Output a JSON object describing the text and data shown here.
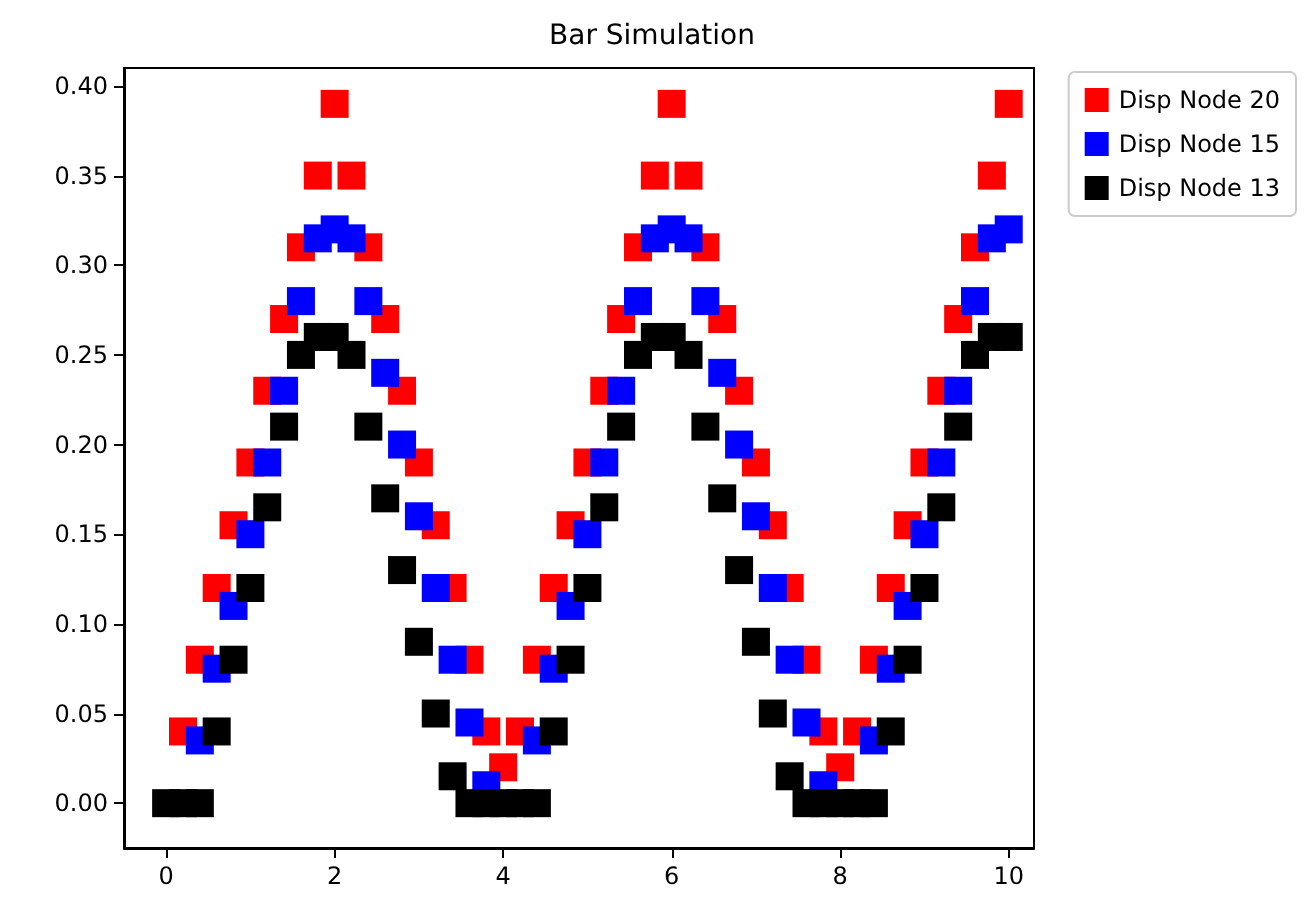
{
  "chart_data": {
    "type": "scatter",
    "title": "Bar Simulation",
    "x": [
      0,
      0.2,
      0.4,
      0.6,
      0.8,
      1,
      1.2,
      1.4,
      1.6,
      1.8,
      2,
      2.2,
      2.4,
      2.6,
      2.8,
      3,
      3.2,
      3.4,
      3.6,
      3.8,
      4,
      4.2,
      4.4,
      4.6,
      4.8,
      5,
      5.2,
      5.4,
      5.6,
      5.8,
      6,
      6.2,
      6.4,
      6.6,
      6.8,
      7,
      7.2,
      7.4,
      7.6,
      7.8,
      8,
      8.2,
      8.4,
      8.6,
      8.8,
      9,
      9.2,
      9.4,
      9.6,
      9.8,
      10
    ],
    "series": [
      {
        "name": "Disp Node 20",
        "color": "#ff0000",
        "values": [
          null,
          0.04,
          0.08,
          0.12,
          0.155,
          0.19,
          0.23,
          0.27,
          0.31,
          0.35,
          0.39,
          0.35,
          0.31,
          0.27,
          0.23,
          0.19,
          0.155,
          0.12,
          0.08,
          0.04,
          0.02,
          0.04,
          0.08,
          0.12,
          0.155,
          0.19,
          0.23,
          0.27,
          0.31,
          0.35,
          0.39,
          0.35,
          0.31,
          0.27,
          0.23,
          0.19,
          0.155,
          0.12,
          0.08,
          0.04,
          0.02,
          0.04,
          0.08,
          0.12,
          0.155,
          0.19,
          0.23,
          0.27,
          0.31,
          0.35,
          0.39
        ]
      },
      {
        "name": "Disp Node 15",
        "color": "#0000ff",
        "values": [
          null,
          null,
          0.035,
          0.075,
          0.11,
          0.15,
          0.19,
          0.23,
          0.28,
          0.315,
          0.32,
          0.315,
          0.28,
          0.24,
          0.2,
          0.16,
          0.12,
          0.08,
          0.045,
          0.01,
          null,
          null,
          0.035,
          0.075,
          0.11,
          0.15,
          0.19,
          0.23,
          0.28,
          0.315,
          0.32,
          0.315,
          0.28,
          0.24,
          0.2,
          0.16,
          0.12,
          0.08,
          0.045,
          0.01,
          null,
          null,
          0.035,
          0.075,
          0.11,
          0.15,
          0.19,
          0.23,
          0.28,
          0.315,
          0.32
        ]
      },
      {
        "name": "Disp Node 13",
        "color": "#000000",
        "values": [
          0,
          0,
          0,
          0.04,
          0.08,
          0.12,
          0.165,
          0.21,
          0.25,
          0.26,
          0.26,
          0.25,
          0.21,
          0.17,
          0.13,
          0.09,
          0.05,
          0.015,
          0,
          0,
          0,
          0,
          0,
          0.04,
          0.08,
          0.12,
          0.165,
          0.21,
          0.25,
          0.26,
          0.26,
          0.25,
          0.21,
          0.17,
          0.13,
          0.09,
          0.05,
          0.015,
          0,
          0,
          0,
          0,
          0,
          0.04,
          0.08,
          0.12,
          0.165,
          0.21,
          0.25,
          0.26,
          0.26
        ]
      }
    ],
    "xlim": [
      -0.5,
      10.3
    ],
    "xticks": [
      0,
      2,
      4,
      6,
      8,
      10
    ],
    "ylim": [
      -0.025,
      0.41
    ],
    "yticks": [
      {
        "value": 0,
        "label": "0.00"
      },
      {
        "value": 0.05,
        "label": "0.05"
      },
      {
        "value": 0.1,
        "label": "0.10"
      },
      {
        "value": 0.15,
        "label": "0.15"
      },
      {
        "value": 0.2,
        "label": "0.20"
      },
      {
        "value": 0.25,
        "label": "0.25"
      },
      {
        "value": 0.3,
        "label": "0.30"
      },
      {
        "value": 0.35,
        "label": "0.35"
      },
      {
        "value": 0.4,
        "label": "0.40"
      }
    ],
    "marker": "square",
    "grid": false,
    "legend": "top right"
  }
}
